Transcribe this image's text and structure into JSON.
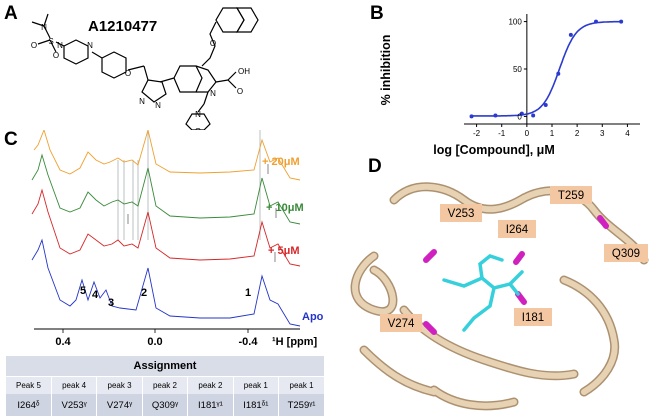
{
  "panels": {
    "a": "A",
    "b": "B",
    "c": "C",
    "d": "D"
  },
  "compound": {
    "name": "A1210477",
    "atoms": [
      "N",
      "S",
      "O",
      "O",
      "N",
      "N",
      "O",
      "O",
      "N",
      "N",
      "N",
      "OH",
      "O",
      "N",
      "O"
    ]
  },
  "colors": {
    "apo": "#2434c8",
    "five": "#d62728",
    "ten": "#3a8a3a",
    "twenty": "#f0a030",
    "protein": "#d9c0a0",
    "ligand": "#35d0dc",
    "highlight": "#d020c0",
    "label_bg": "#f3c7a2"
  },
  "chart_data": {
    "type": "scatter",
    "xlabel": "log [Compound], μM",
    "ylabel": "% inhibition",
    "xlim": [
      -2.5,
      4.5
    ],
    "ylim": [
      -8,
      108
    ],
    "xticks": [
      -2,
      -1,
      0,
      1,
      2,
      3,
      4
    ],
    "yticks": [
      0,
      50,
      100
    ],
    "curve": "sigmoidal fit",
    "points": [
      {
        "x": -2.2,
        "y": 0
      },
      {
        "x": -1.25,
        "y": 1
      },
      {
        "x": -0.2,
        "y": 3
      },
      {
        "x": 0.25,
        "y": 1
      },
      {
        "x": 0.75,
        "y": 12
      },
      {
        "x": 1.25,
        "y": 45
      },
      {
        "x": 1.75,
        "y": 86
      },
      {
        "x": 2.75,
        "y": 100
      },
      {
        "x": 3.75,
        "y": 100
      }
    ],
    "fit": {
      "bottom": 0.5,
      "top": 100,
      "logEC50": 1.3,
      "hill": 1.3
    }
  },
  "nmr": {
    "xlabel": "¹H [ppm]",
    "xticks": [
      "0.4",
      "0.0",
      "-0.4"
    ],
    "spectra": [
      {
        "label": "Apo"
      },
      {
        "label": "+ 5μM"
      },
      {
        "label": "+ 10μM"
      },
      {
        "label": "+ 20μM"
      }
    ],
    "peak_numbers": [
      "5",
      "4",
      "3",
      "2",
      "1"
    ]
  },
  "assignment": {
    "title": "Assignment",
    "headers": [
      "Peak 5",
      "peak 4",
      "peak 3",
      "peak 2",
      "peak 2",
      "peak 1",
      "peak 1"
    ],
    "values": [
      "I264ᵟ",
      "V253ᵞ",
      "V274ᵞ",
      "Q309ᵞ",
      "I181ᵞ¹",
      "I181ᵟ¹",
      "T259ᵞ¹"
    ]
  },
  "structure": {
    "residues": [
      "V253",
      "I264",
      "T259",
      "Q309",
      "V274",
      "I181"
    ]
  }
}
